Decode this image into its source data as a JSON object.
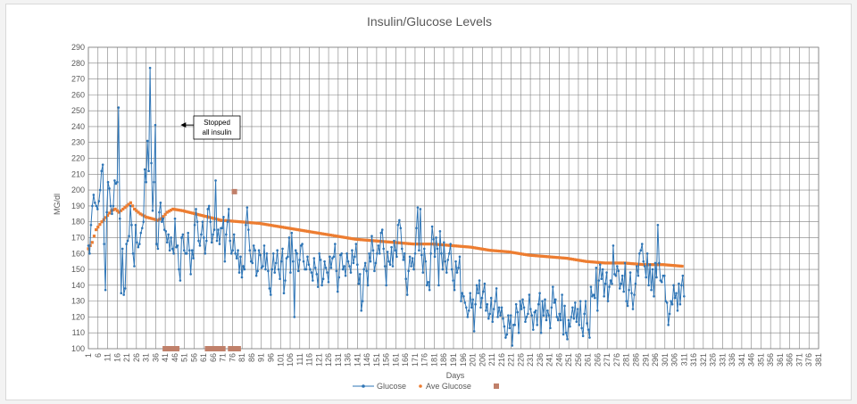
{
  "chart_data": {
    "type": "line",
    "title": "Insulin/Glucose Levels",
    "xlabel": "Days",
    "ylabel": "MG/dl",
    "ylim": [
      100,
      290
    ],
    "xlim": [
      1,
      381
    ],
    "grid": true,
    "legend_position": "bottom",
    "colors": {
      "glucose": "#2E75B6",
      "ave": "#ED7D31",
      "marker": "#C0806A"
    },
    "series": [
      {
        "name": "Glucose",
        "style": "line-markers",
        "x_start": 1,
        "values": [
          165,
          160,
          178,
          190,
          197,
          192,
          190,
          188,
          193,
          200,
          212,
          216,
          166,
          137,
          186,
          205,
          201,
          190,
          185,
          190,
          206,
          204,
          205,
          252,
          182,
          135,
          163,
          134,
          138,
          166,
          168,
          171,
          190,
          178,
          160,
          152,
          178,
          167,
          164,
          166,
          173,
          176,
          180,
          213,
          205,
          231,
          212,
          277,
          217,
          187,
          205,
          241,
          166,
          163,
          186,
          192,
          180,
          182,
          175,
          174,
          167,
          172,
          162,
          170,
          163,
          160,
          182,
          164,
          165,
          150,
          143,
          170,
          172,
          162,
          160,
          160,
          173,
          162,
          147,
          162,
          157,
          178,
          188,
          180,
          168,
          165,
          172,
          180,
          170,
          160,
          168,
          188,
          190,
          180,
          167,
          172,
          175,
          206,
          168,
          175,
          166,
          176,
          176,
          183,
          155,
          172,
          180,
          188,
          168,
          160,
          162,
          172,
          160,
          157,
          162,
          148,
          158,
          145,
          152,
          150,
          178,
          189,
          175,
          162,
          155,
          154,
          165,
          162,
          146,
          149,
          162,
          159,
          151,
          152,
          165,
          150,
          160,
          149,
          138,
          134,
          150,
          160,
          148,
          154,
          162,
          150,
          144,
          155,
          163,
          135,
          143,
          157,
          158,
          170,
          148,
          173,
          155,
          120,
          162,
          160,
          149,
          156,
          165,
          166,
          155,
          150,
          150,
          158,
          153,
          150,
          148,
          143,
          157,
          151,
          147,
          139,
          160,
          156,
          140,
          144,
          155,
          151,
          148,
          142,
          158,
          151,
          157,
          158,
          166,
          149,
          136,
          145,
          159,
          160,
          150,
          152,
          146,
          160,
          155,
          152,
          148,
          162,
          154,
          158,
          166,
          153,
          141,
          147,
          124,
          130,
          150,
          154,
          149,
          140,
          160,
          155,
          171,
          162,
          149,
          154,
          160,
          165,
          160,
          173,
          175,
          163,
          152,
          140,
          161,
          155,
          153,
          164,
          152,
          168,
          162,
          158,
          178,
          181,
          176,
          163,
          156,
          160,
          144,
          134,
          149,
          158,
          152,
          157,
          150,
          160,
          176,
          189,
          162,
          188,
          159,
          148,
          163,
          155,
          140,
          142,
          137,
          160,
          177,
          169,
          158,
          170,
          163,
          140,
          174,
          160,
          150,
          167,
          155,
          148,
          156,
          160,
          166,
          150,
          143,
          137,
          155,
          148,
          151,
          158,
          130,
          135,
          133,
          129,
          126,
          120,
          124,
          135,
          126,
          131,
          111,
          128,
          140,
          135,
          143,
          126,
          132,
          136,
          141,
          124,
          128,
          119,
          122,
          132,
          117,
          125,
          130,
          138,
          120,
          126,
          121,
          126,
          119,
          114,
          107,
          109,
          121,
          113,
          121,
          102,
          115,
          115,
          128,
          123,
          110,
          130,
          125,
          131,
          126,
          117,
          120,
          122,
          134,
          125,
          121,
          112,
          123,
          124,
          115,
          128,
          135,
          110,
          130,
          121,
          131,
          118,
          124,
          121,
          113,
          126,
          139,
          129,
          131,
          120,
          118,
          122,
          118,
          134,
          109,
          127,
          110,
          106,
          118,
          114,
          120,
          126,
          119,
          129,
          117,
          125,
          115,
          130,
          113,
          108,
          122,
          130,
          116,
          112,
          107,
          139,
          133,
          134,
          132,
          151,
          124,
          143,
          153,
          144,
          150,
          133,
          141,
          148,
          130,
          139,
          143,
          141,
          165,
          147,
          146,
          152,
          149,
          138,
          141,
          146,
          136,
          154,
          130,
          127,
          137,
          148,
          135,
          125,
          134,
          141,
          152,
          146,
          160,
          162,
          166,
          155,
          152,
          145,
          160,
          140,
          153,
          137,
          150,
          133,
          154,
          145,
          178,
          154,
          143,
          142,
          146,
          146,
          130,
          129,
          115,
          122,
          130,
          128,
          140,
          132,
          135,
          124,
          141,
          128,
          140,
          146,
          133
        ]
      },
      {
        "name": "Ave Glucose",
        "style": "markers",
        "x_start": 1,
        "keypoints": [
          [
            1,
            163
          ],
          [
            3,
            167
          ],
          [
            5,
            175
          ],
          [
            8,
            180
          ],
          [
            11,
            184
          ],
          [
            13,
            187
          ],
          [
            15,
            188
          ],
          [
            17,
            186
          ],
          [
            19,
            188
          ],
          [
            21,
            190
          ],
          [
            23,
            192
          ],
          [
            25,
            188
          ],
          [
            28,
            185
          ],
          [
            31,
            183
          ],
          [
            34,
            182
          ],
          [
            37,
            181
          ],
          [
            39,
            182
          ],
          [
            42,
            186
          ],
          [
            45,
            188
          ],
          [
            50,
            187
          ],
          [
            60,
            184
          ],
          [
            70,
            181
          ],
          [
            80,
            180
          ],
          [
            90,
            179
          ],
          [
            100,
            177
          ],
          [
            110,
            175
          ],
          [
            120,
            173
          ],
          [
            130,
            171
          ],
          [
            140,
            169
          ],
          [
            150,
            168
          ],
          [
            160,
            167
          ],
          [
            170,
            166
          ],
          [
            180,
            166
          ],
          [
            190,
            165
          ],
          [
            200,
            164
          ],
          [
            210,
            162
          ],
          [
            220,
            161
          ],
          [
            230,
            159
          ],
          [
            240,
            158
          ],
          [
            250,
            157
          ],
          [
            260,
            155
          ],
          [
            270,
            154
          ],
          [
            280,
            154
          ],
          [
            290,
            153
          ],
          [
            300,
            153
          ],
          [
            310,
            152
          ]
        ]
      },
      {
        "name": "",
        "style": "square-marker",
        "points": [
          [
            41,
            100
          ],
          [
            43,
            100
          ],
          [
            45,
            100
          ],
          [
            47,
            100
          ],
          [
            63,
            100
          ],
          [
            65,
            100
          ],
          [
            67,
            100
          ],
          [
            69,
            100
          ],
          [
            71,
            100
          ],
          [
            75,
            100
          ],
          [
            77,
            100
          ],
          [
            79,
            100
          ],
          [
            77,
            199
          ]
        ]
      }
    ],
    "x_tick_labels": [
      "1",
      "6",
      "11",
      "16",
      "21",
      "26",
      "31",
      "36",
      "41",
      "46",
      "51",
      "56",
      "61",
      "66",
      "71",
      "76",
      "81",
      "86",
      "91",
      "96",
      "101",
      "106",
      "111",
      "116",
      "121",
      "126",
      "131",
      "136",
      "141",
      "146",
      "151",
      "156",
      "161",
      "166",
      "171",
      "176",
      "181",
      "186",
      "191",
      "196",
      "201",
      "206",
      "211",
      "216",
      "221",
      "226",
      "231",
      "236",
      "241",
      "246",
      "251",
      "256",
      "261",
      "266",
      "271",
      "276",
      "281",
      "286",
      "291",
      "296",
      "301",
      "306",
      "311",
      "316",
      "321",
      "326",
      "331",
      "336",
      "341",
      "346",
      "351",
      "356",
      "361",
      "366",
      "371",
      "376",
      "381"
    ],
    "y_tick_labels": [
      "100",
      "110",
      "120",
      "130",
      "140",
      "150",
      "160",
      "170",
      "180",
      "190",
      "200",
      "210",
      "220",
      "230",
      "240",
      "250",
      "260",
      "270",
      "280",
      "290"
    ],
    "annotations": [
      {
        "text_line1": "Stopped",
        "text_line2": "all insulin",
        "points_to_x": 49,
        "points_to_y": 241
      }
    ],
    "legend": [
      "Glucose",
      "Ave Glucose",
      ""
    ]
  }
}
